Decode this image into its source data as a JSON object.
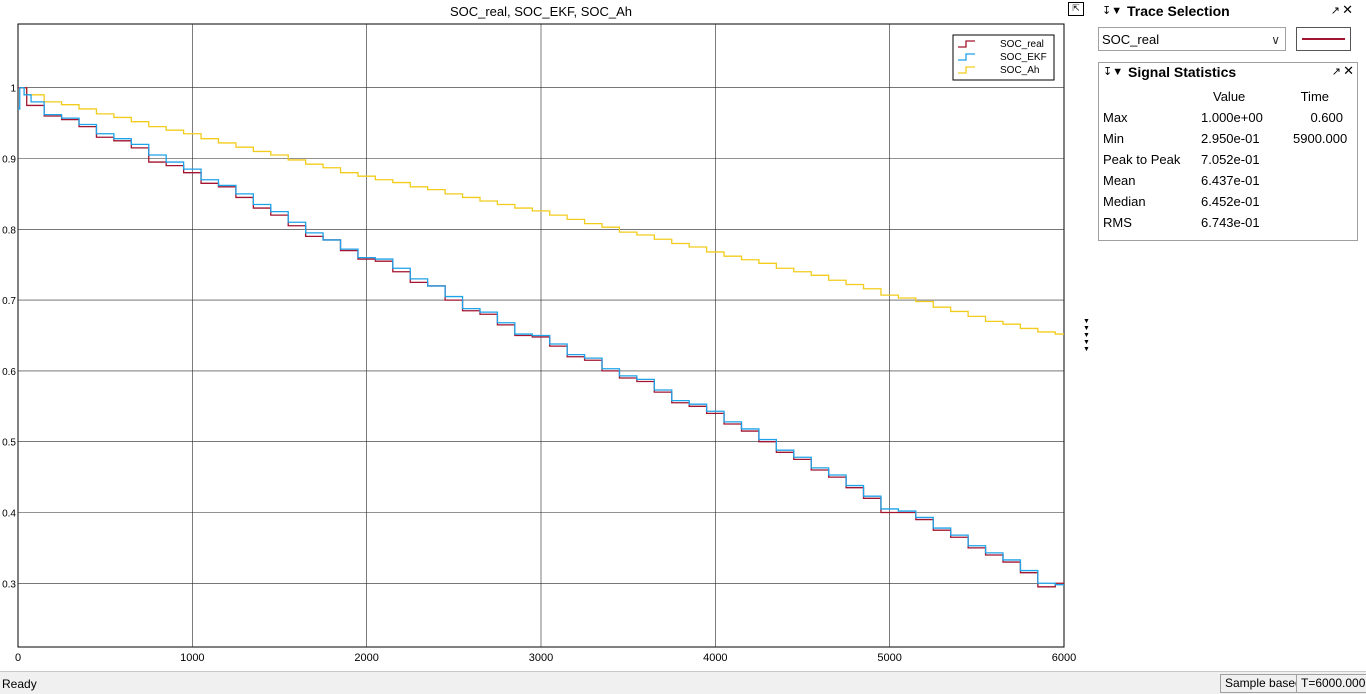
{
  "window": {
    "restore_icon": "restore-icon"
  },
  "chart_data": {
    "type": "line",
    "title": "SOC_real, SOC_EKF, SOC_Ah",
    "xlabel": "",
    "ylabel": "",
    "xlim": [
      0,
      6000
    ],
    "ylim": [
      0.21,
      1.09
    ],
    "x_ticks": [
      0,
      1000,
      2000,
      3000,
      4000,
      5000,
      6000
    ],
    "x_tick_labels": [
      "0",
      "1000",
      "2000",
      "3000",
      "4000",
      "5000",
      "6000"
    ],
    "y_ticks": [
      0.3,
      0.4,
      0.5,
      0.6,
      0.7,
      0.8,
      0.9,
      1.0
    ],
    "y_tick_labels": [
      "0.3",
      "0.4",
      "0.5",
      "0.6",
      "0.7",
      "0.8",
      "0.9",
      "1"
    ],
    "grid": true,
    "legend": "top-right",
    "series": [
      {
        "name": "SOC_real",
        "color": "#a2142f",
        "x": [
          0,
          100,
          200,
          300,
          400,
          500,
          600,
          700,
          800,
          900,
          1000,
          1100,
          1200,
          1300,
          1400,
          1500,
          1600,
          1700,
          1800,
          1900,
          2000,
          2100,
          2200,
          2300,
          2400,
          2500,
          2600,
          2700,
          2800,
          2900,
          3000,
          3100,
          3200,
          3300,
          3400,
          3500,
          3600,
          3700,
          3800,
          3900,
          4000,
          4100,
          4200,
          4300,
          4400,
          4500,
          4600,
          4700,
          4800,
          4900,
          5000,
          5100,
          5200,
          5300,
          5400,
          5500,
          5600,
          5700,
          5800,
          5900,
          6000
        ],
        "values": [
          1.0,
          0.975,
          0.96,
          0.955,
          0.945,
          0.93,
          0.925,
          0.915,
          0.895,
          0.89,
          0.88,
          0.865,
          0.86,
          0.845,
          0.83,
          0.82,
          0.805,
          0.79,
          0.785,
          0.77,
          0.758,
          0.755,
          0.74,
          0.725,
          0.72,
          0.7,
          0.685,
          0.68,
          0.665,
          0.65,
          0.648,
          0.635,
          0.62,
          0.615,
          0.6,
          0.59,
          0.585,
          0.57,
          0.555,
          0.55,
          0.54,
          0.525,
          0.515,
          0.5,
          0.485,
          0.475,
          0.46,
          0.45,
          0.435,
          0.42,
          0.4,
          0.4,
          0.39,
          0.375,
          0.365,
          0.35,
          0.34,
          0.33,
          0.315,
          0.295,
          0.3
        ]
      },
      {
        "name": "SOC_EKF",
        "color": "#1fa2e8",
        "x": [
          0,
          20,
          50,
          100,
          200,
          300,
          400,
          500,
          600,
          700,
          800,
          900,
          1000,
          1100,
          1200,
          1300,
          1400,
          1500,
          1600,
          1700,
          1800,
          1900,
          2000,
          2100,
          2200,
          2300,
          2400,
          2500,
          2600,
          2700,
          2800,
          2900,
          3000,
          3100,
          3200,
          3300,
          3400,
          3500,
          3600,
          3700,
          3800,
          3900,
          4000,
          4100,
          4200,
          4300,
          4400,
          4500,
          4600,
          4700,
          4800,
          4900,
          5000,
          5100,
          5200,
          5300,
          5400,
          5500,
          5600,
          5700,
          5800,
          5900,
          6000
        ],
        "values": [
          0.97,
          1.0,
          0.99,
          0.98,
          0.962,
          0.957,
          0.948,
          0.935,
          0.928,
          0.92,
          0.905,
          0.895,
          0.885,
          0.87,
          0.862,
          0.85,
          0.835,
          0.825,
          0.81,
          0.795,
          0.785,
          0.772,
          0.76,
          0.758,
          0.745,
          0.73,
          0.72,
          0.705,
          0.688,
          0.683,
          0.668,
          0.652,
          0.65,
          0.638,
          0.623,
          0.618,
          0.603,
          0.593,
          0.588,
          0.573,
          0.558,
          0.553,
          0.543,
          0.528,
          0.518,
          0.503,
          0.488,
          0.478,
          0.463,
          0.453,
          0.438,
          0.423,
          0.405,
          0.402,
          0.393,
          0.378,
          0.368,
          0.353,
          0.343,
          0.333,
          0.318,
          0.3,
          0.298
        ]
      },
      {
        "name": "SOC_Ah",
        "color": "#f2cc1c",
        "x": [
          0,
          100,
          200,
          300,
          400,
          500,
          600,
          700,
          800,
          900,
          1000,
          1100,
          1200,
          1300,
          1400,
          1500,
          1600,
          1700,
          1800,
          1900,
          2000,
          2100,
          2200,
          2300,
          2400,
          2500,
          2600,
          2700,
          2800,
          2900,
          3000,
          3100,
          3200,
          3300,
          3400,
          3500,
          3600,
          3700,
          3800,
          3900,
          4000,
          4100,
          4200,
          4300,
          4400,
          4500,
          4600,
          4700,
          4800,
          4900,
          5000,
          5100,
          5200,
          5300,
          5400,
          5500,
          5600,
          5700,
          5800,
          5900,
          6000
        ],
        "values": [
          1.0,
          0.99,
          0.98,
          0.976,
          0.97,
          0.963,
          0.958,
          0.952,
          0.945,
          0.94,
          0.935,
          0.928,
          0.922,
          0.916,
          0.91,
          0.905,
          0.898,
          0.892,
          0.887,
          0.88,
          0.875,
          0.87,
          0.866,
          0.86,
          0.856,
          0.85,
          0.845,
          0.84,
          0.835,
          0.83,
          0.826,
          0.82,
          0.814,
          0.808,
          0.803,
          0.796,
          0.792,
          0.786,
          0.78,
          0.775,
          0.768,
          0.762,
          0.757,
          0.752,
          0.745,
          0.74,
          0.735,
          0.728,
          0.722,
          0.716,
          0.707,
          0.703,
          0.698,
          0.69,
          0.684,
          0.677,
          0.67,
          0.666,
          0.66,
          0.655,
          0.652
        ]
      }
    ]
  },
  "trace_selection": {
    "title": "Trace Selection",
    "pin_icon": "pin-icon",
    "selected_trace": "SOC_real",
    "swatch_color": "#a2142f"
  },
  "signal_statistics": {
    "title": "Signal Statistics",
    "columns": {
      "value": "Value",
      "time": "Time"
    },
    "rows": [
      {
        "label": "Max",
        "value": "1.000e+00",
        "time": "0.600"
      },
      {
        "label": "Min",
        "value": "2.950e-01",
        "time": "5900.000"
      },
      {
        "label": "Peak to Peak",
        "value": "7.052e-01",
        "time": ""
      },
      {
        "label": "Mean",
        "value": "6.437e-01",
        "time": ""
      },
      {
        "label": "Median",
        "value": "6.452e-01",
        "time": ""
      },
      {
        "label": "RMS",
        "value": "6.743e-01",
        "time": ""
      }
    ]
  },
  "status_bar": {
    "status": "Ready",
    "mode": "Sample based",
    "time": "T=6000.000"
  }
}
